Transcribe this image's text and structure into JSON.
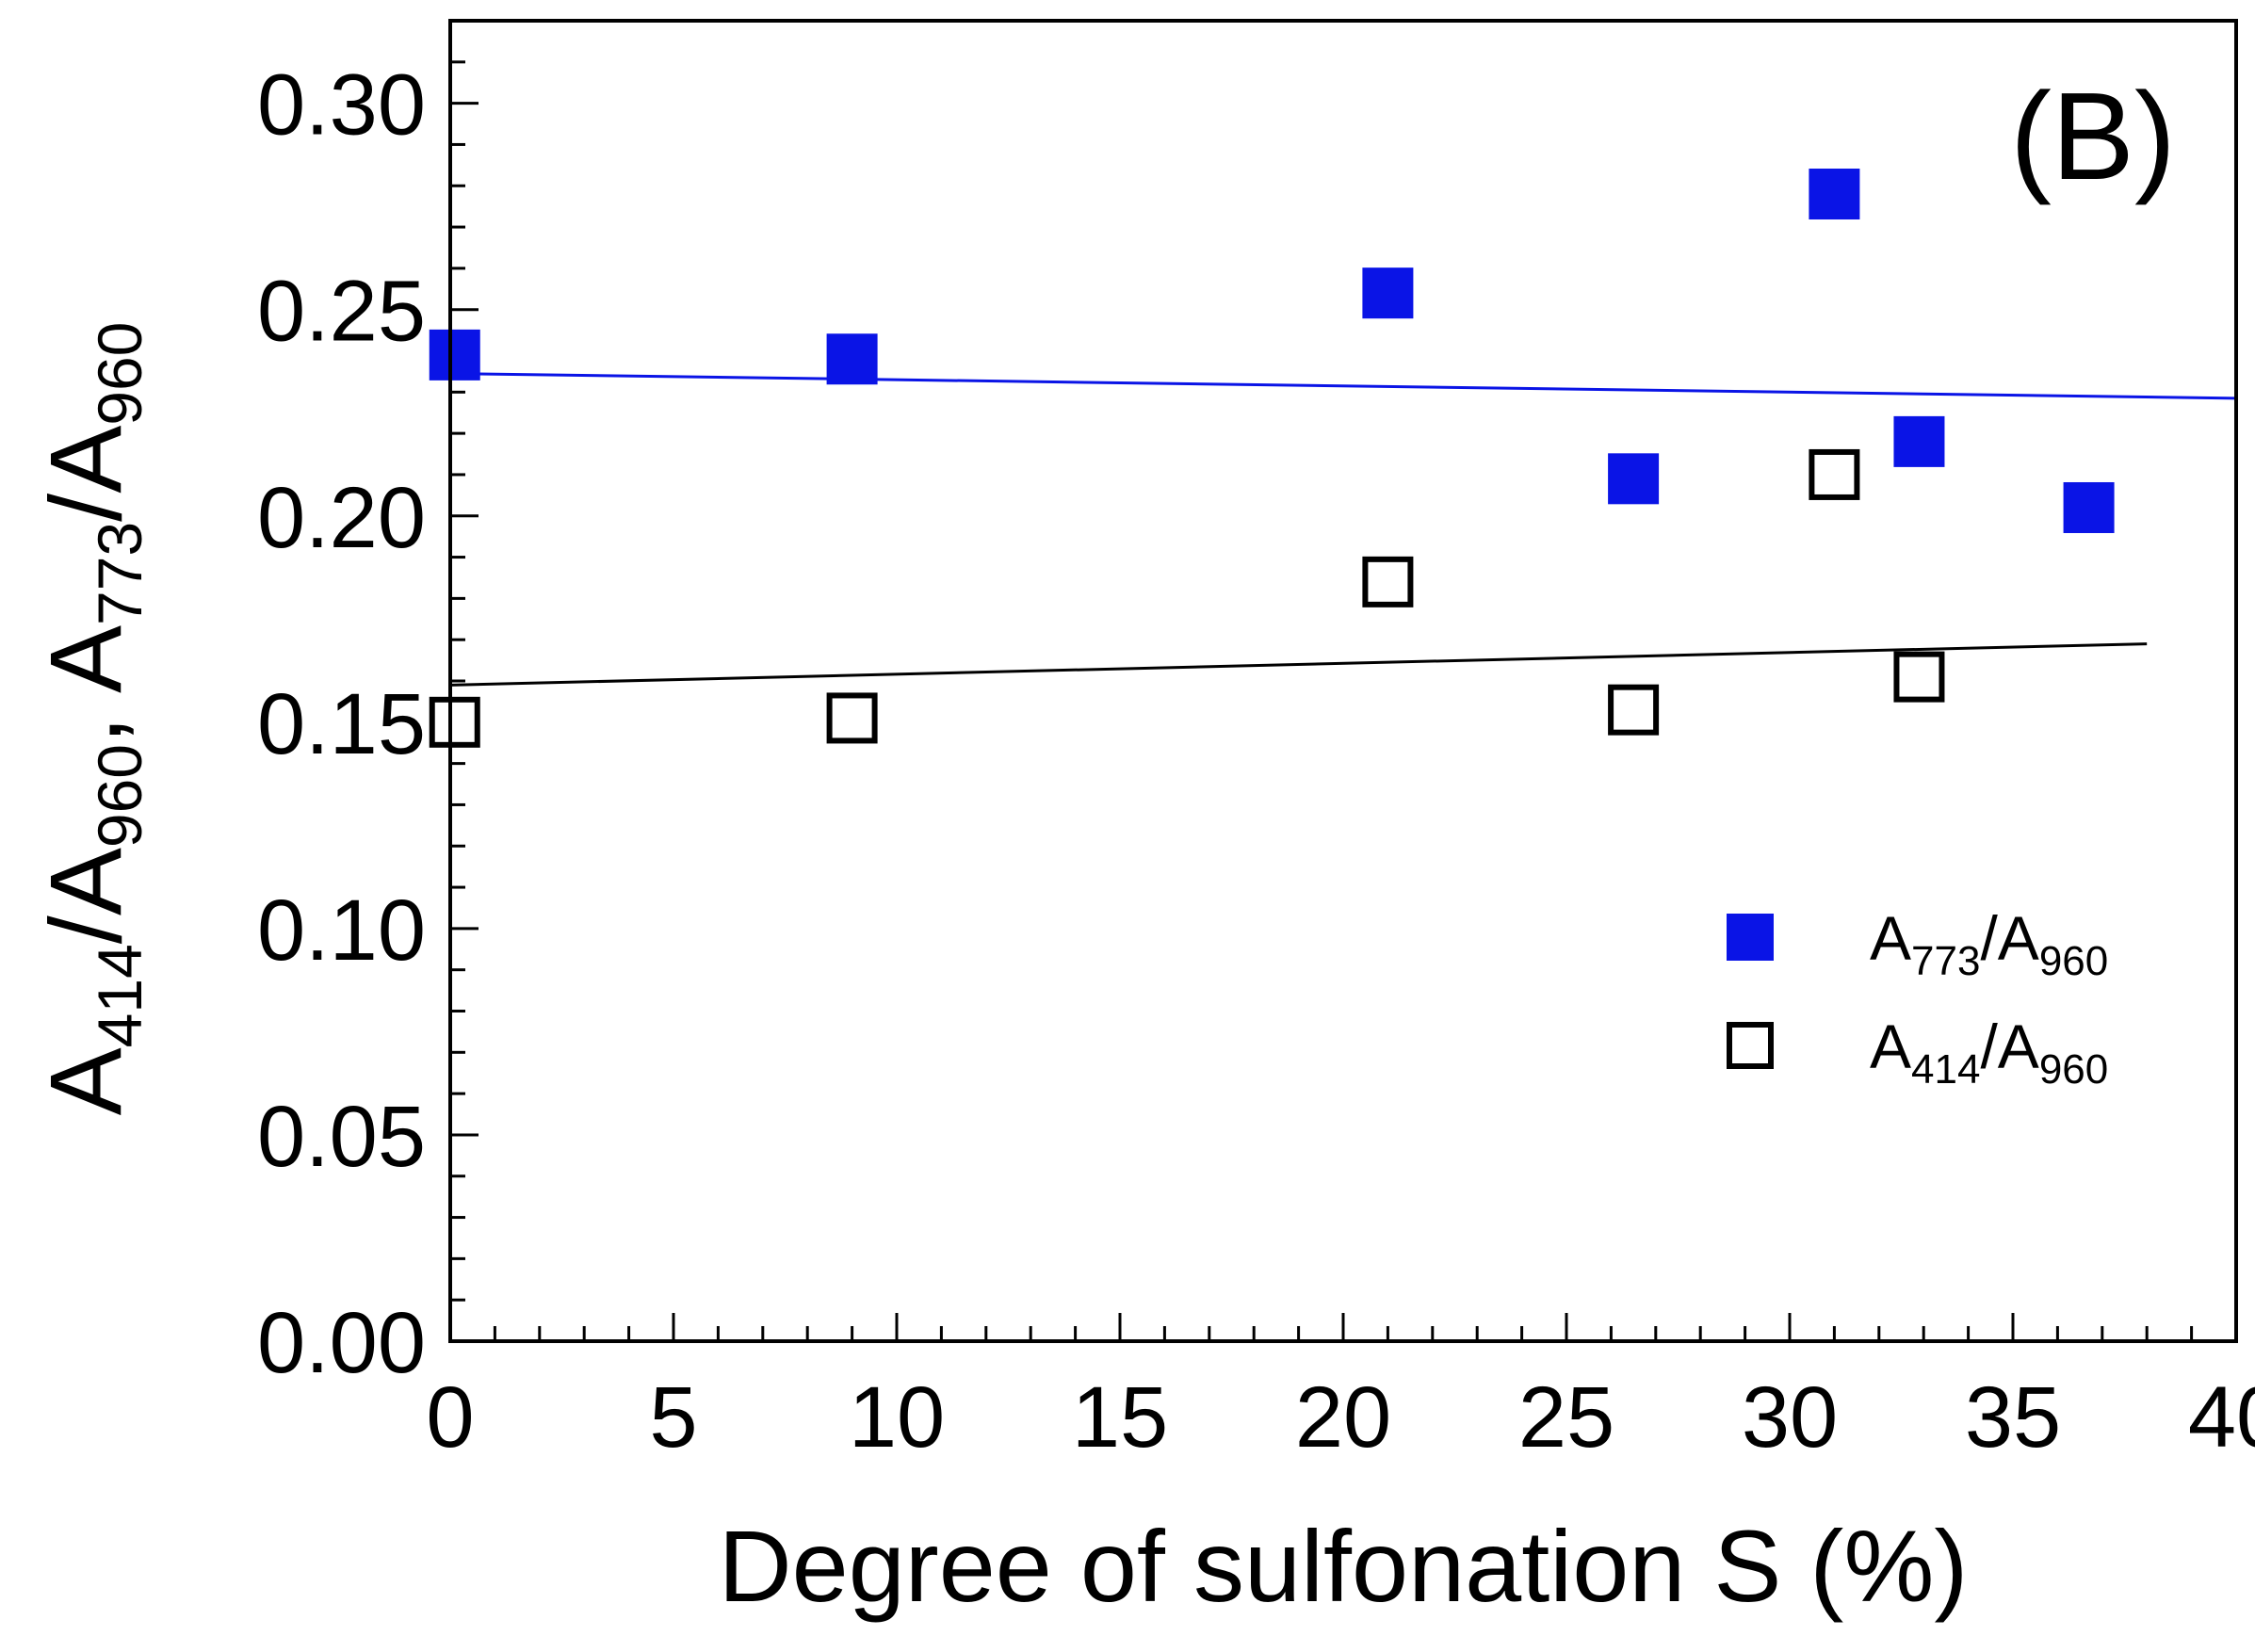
{
  "chart_data": {
    "type": "scatter",
    "panel_label": "(B)",
    "xlabel": "Degree of sulfonation S (%)",
    "ylabel": {
      "parts": [
        {
          "t": "A",
          "sub": false
        },
        {
          "t": "414",
          "sub": true
        },
        {
          "t": "/A",
          "sub": false
        },
        {
          "t": "960",
          "sub": true
        },
        {
          "t": ", A",
          "sub": false
        },
        {
          "t": "773",
          "sub": true
        },
        {
          "t": "/A",
          "sub": false
        },
        {
          "t": "960",
          "sub": true
        }
      ]
    },
    "xlim": [
      0,
      40
    ],
    "ylim": [
      0,
      0.32
    ],
    "xticks": [
      0,
      5,
      10,
      15,
      20,
      25,
      30,
      35,
      40
    ],
    "xtick_labels": [
      "0",
      "5",
      "10",
      "15",
      "20",
      "25",
      "30",
      "35",
      "40"
    ],
    "yticks": [
      0,
      0.05,
      0.1,
      0.15,
      0.2,
      0.25,
      0.3
    ],
    "ytick_labels": [
      "0.00",
      "0.05",
      "0.10",
      "0.15",
      "0.20",
      "0.25",
      "0.30"
    ],
    "series": [
      {
        "name": "A773/A960",
        "legend": {
          "base": "A",
          "sub1": "773",
          "mid": "/A",
          "sub2": "960"
        },
        "marker": "filled-square",
        "color": "#0a14e6",
        "points": [
          [
            0.1,
            0.239
          ],
          [
            9,
            0.238
          ],
          [
            21,
            0.254
          ],
          [
            26.5,
            0.209
          ],
          [
            31,
            0.278
          ],
          [
            32.9,
            0.218
          ],
          [
            36.7,
            0.202
          ]
        ],
        "fit": {
          "x": [
            0,
            40
          ],
          "y": [
            0.2345,
            0.2285
          ]
        }
      },
      {
        "name": "A414/A960",
        "legend": {
          "base": "A",
          "sub1": "414",
          "mid": "/A",
          "sub2": "960"
        },
        "marker": "open-square",
        "color": "#000000",
        "points": [
          [
            0.1,
            0.15
          ],
          [
            9,
            0.151
          ],
          [
            21,
            0.184
          ],
          [
            26.5,
            0.153
          ],
          [
            31,
            0.21
          ],
          [
            32.9,
            0.161
          ]
        ],
        "fit": {
          "x": [
            0,
            38
          ],
          "y": [
            0.159,
            0.169
          ]
        }
      }
    ]
  }
}
